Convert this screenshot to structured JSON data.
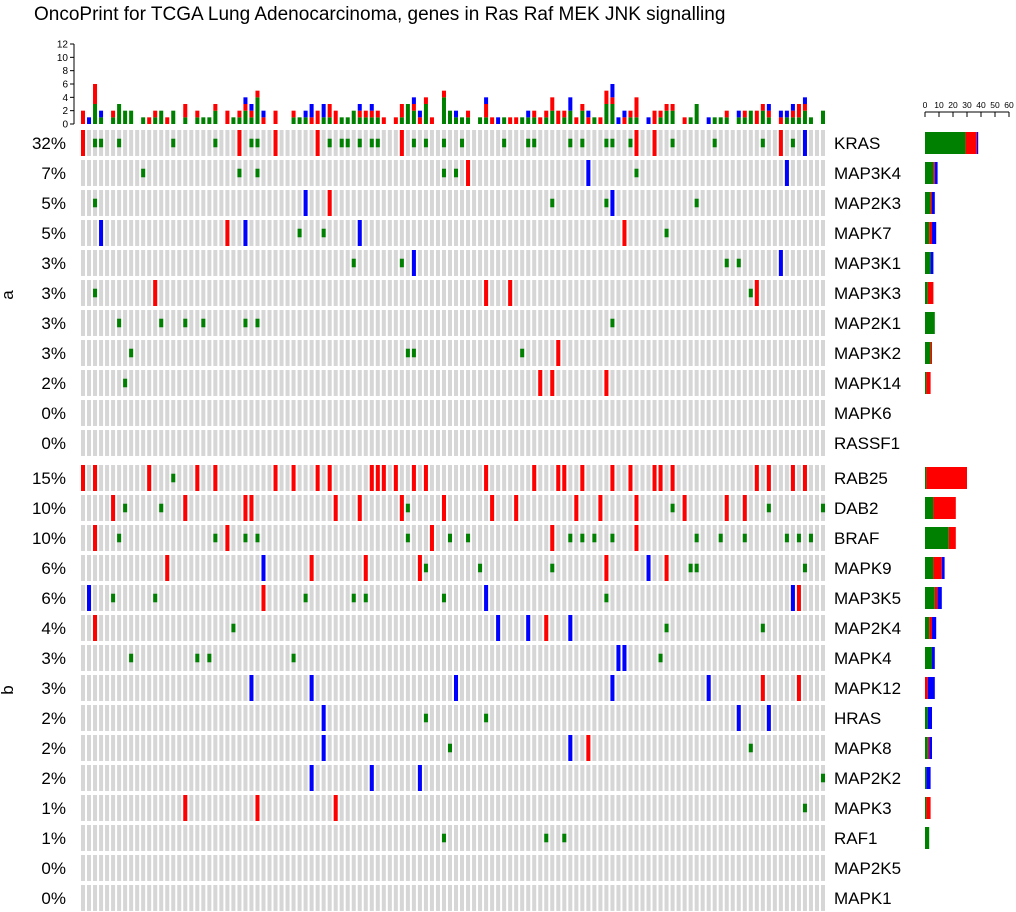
{
  "chart_data": {
    "type": "heatmap",
    "title": "OncoPrint for TCGA Lung Adenocarcinoma, genes in Ras Raf MEK JNK signalling",
    "n_samples": 124,
    "colors": {
      "background": "#d6d6d6",
      "amp": "#ff0000",
      "del": "#0000ff",
      "mut": "#008000"
    },
    "top_barplot": {
      "y_ticks": [
        "12",
        "10",
        "8",
        "6",
        "4",
        "2",
        "0"
      ],
      "y_max": 12
    },
    "right_barplot": {
      "x_ticks": [
        "0",
        "10",
        "20",
        "30",
        "40",
        "50",
        "60"
      ],
      "x_max": 60
    },
    "groups": [
      {
        "label": "a",
        "genes": [
          {
            "name": "KRAS",
            "pct": "32%",
            "amp": 8,
            "del": 1,
            "mut": 29
          },
          {
            "name": "MAP3K4",
            "pct": "7%",
            "amp": 1,
            "del": 2,
            "mut": 6
          },
          {
            "name": "MAP2K3",
            "pct": "5%",
            "amp": 1,
            "del": 2,
            "mut": 4
          },
          {
            "name": "MAPK7",
            "pct": "5%",
            "amp": 2,
            "del": 3,
            "mut": 3
          },
          {
            "name": "MAP3K1",
            "pct": "3%",
            "amp": 0,
            "del": 2,
            "mut": 4
          },
          {
            "name": "MAP3K3",
            "pct": "3%",
            "amp": 4,
            "del": 0,
            "mut": 2
          },
          {
            "name": "MAP2K1",
            "pct": "3%",
            "amp": 0,
            "del": 0,
            "mut": 7
          },
          {
            "name": "MAP3K2",
            "pct": "3%",
            "amp": 1,
            "del": 0,
            "mut": 4
          },
          {
            "name": "MAPK14",
            "pct": "2%",
            "amp": 3,
            "del": 0,
            "mut": 1
          },
          {
            "name": "MAPK6",
            "pct": "0%",
            "amp": 0,
            "del": 0,
            "mut": 0
          },
          {
            "name": "RASSF1",
            "pct": "0%",
            "amp": 0,
            "del": 0,
            "mut": 0
          }
        ]
      },
      {
        "label": "b",
        "genes": [
          {
            "name": "RAB25",
            "pct": "15%",
            "amp": 29,
            "del": 0,
            "mut": 1
          },
          {
            "name": "DAB2",
            "pct": "10%",
            "amp": 16,
            "del": 0,
            "mut": 6
          },
          {
            "name": "BRAF",
            "pct": "10%",
            "amp": 5,
            "del": 0,
            "mut": 17
          },
          {
            "name": "MAPK9",
            "pct": "6%",
            "amp": 6,
            "del": 2,
            "mut": 6
          },
          {
            "name": "MAP3K5",
            "pct": "6%",
            "amp": 2,
            "del": 3,
            "mut": 7
          },
          {
            "name": "MAP2K4",
            "pct": "4%",
            "amp": 2,
            "del": 3,
            "mut": 3
          },
          {
            "name": "MAPK4",
            "pct": "3%",
            "amp": 0,
            "del": 2,
            "mut": 5
          },
          {
            "name": "MAPK12",
            "pct": "3%",
            "amp": 2,
            "del": 5,
            "mut": 0
          },
          {
            "name": "HRAS",
            "pct": "2%",
            "amp": 0,
            "del": 3,
            "mut": 2
          },
          {
            "name": "MAPK8",
            "pct": "2%",
            "amp": 1,
            "del": 2,
            "mut": 2
          },
          {
            "name": "MAP2K2",
            "pct": "2%",
            "amp": 0,
            "del": 3,
            "mut": 1
          },
          {
            "name": "MAPK3",
            "pct": "1%",
            "amp": 3,
            "del": 0,
            "mut": 1
          },
          {
            "name": "RAF1",
            "pct": "1%",
            "amp": 0,
            "del": 0,
            "mut": 3
          },
          {
            "name": "MAP2K5",
            "pct": "0%",
            "amp": 0,
            "del": 0,
            "mut": 0
          },
          {
            "name": "MAPK1",
            "pct": "0%",
            "amp": 0,
            "del": 0,
            "mut": 0
          }
        ]
      }
    ]
  }
}
